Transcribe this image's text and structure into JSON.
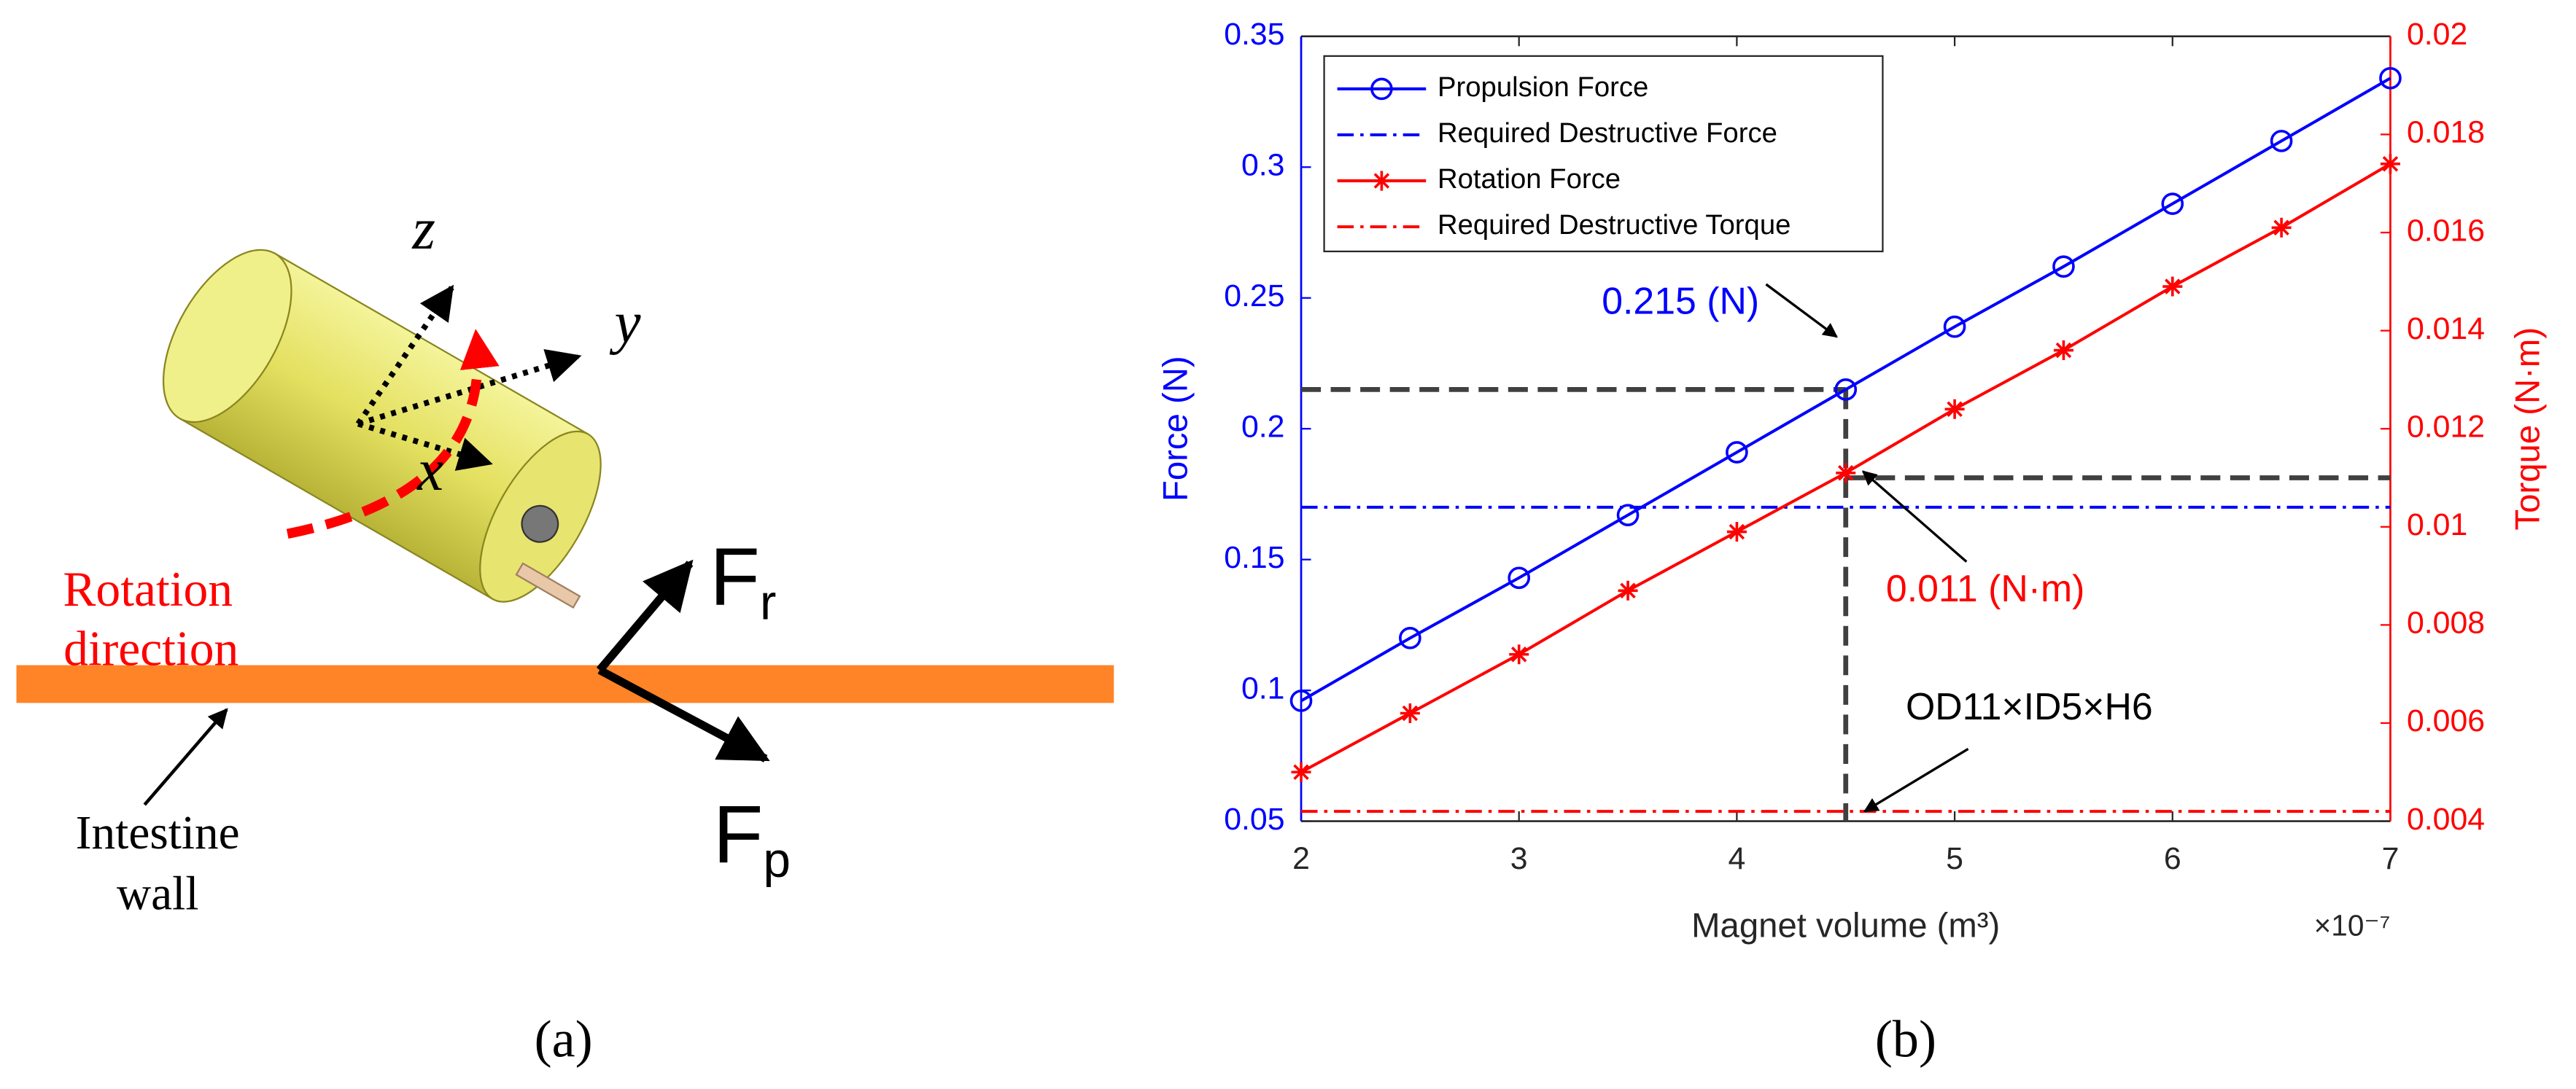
{
  "diagram": {
    "axes": [
      "z",
      "y",
      "x"
    ],
    "rotation_label": [
      "Rotation",
      "direction"
    ],
    "forces": [
      {
        "label": "F",
        "sub": "r"
      },
      {
        "label": "F",
        "sub": "p"
      }
    ],
    "wall_label": [
      "Intestine",
      "wall"
    ],
    "panel_label": "(a)"
  },
  "chart_data": {
    "type": "line",
    "panel_label": "(b)",
    "xlabel": "Magnet volume (m³)",
    "x_multiplier": "×10⁻⁷",
    "ylabel": "Force (N)",
    "y2label": "Torque (N·m)",
    "x": [
      2,
      2.5,
      3,
      3.5,
      4,
      4.5,
      5,
      5.5,
      6,
      6.5,
      7
    ],
    "xlim": [
      2,
      7
    ],
    "xticks": [
      2,
      3,
      4,
      5,
      6,
      7
    ],
    "ylim": [
      0.05,
      0.35
    ],
    "yticks": [
      0.05,
      0.1,
      0.15,
      0.2,
      0.25,
      0.3,
      0.35
    ],
    "y2lim": [
      0.004,
      0.02
    ],
    "y2ticks": [
      0.004,
      0.006,
      0.008,
      0.01,
      0.012,
      0.014,
      0.016,
      0.018,
      0.02
    ],
    "legend": "upper left",
    "series": [
      {
        "name": "Propulsion Force",
        "color": "#0000ff",
        "marker": "circle",
        "line": "solid",
        "values": [
          0.096,
          0.12,
          0.143,
          0.167,
          0.191,
          0.215,
          0.239,
          0.262,
          0.286,
          0.31,
          0.334
        ]
      },
      {
        "name": "Required Destructive Force",
        "color": "#0000ff",
        "marker": "none",
        "line": "dashdot",
        "values": [
          0.17,
          0.17,
          0.17,
          0.17,
          0.17,
          0.17,
          0.17,
          0.17,
          0.17,
          0.17,
          0.17
        ]
      },
      {
        "name": "Rotation Force",
        "color": "#ff0000",
        "marker": "star",
        "line": "solid",
        "axis": "y2",
        "values": [
          0.005,
          0.0062,
          0.0074,
          0.0087,
          0.0099,
          0.0111,
          0.0124,
          0.0136,
          0.0149,
          0.0161,
          0.0174
        ]
      },
      {
        "name": "Required Destructive Torque",
        "color": "#ff0000",
        "marker": "none",
        "line": "dashdot",
        "axis": "y2",
        "values": [
          0.0042,
          0.0042,
          0.0042,
          0.0042,
          0.0042,
          0.0042,
          0.0042,
          0.0042,
          0.0042,
          0.0042,
          0.0042
        ]
      }
    ],
    "annotations": [
      {
        "text": "0.215 (N)",
        "x": 4.5,
        "y": 0.215,
        "color": "#0000ff"
      },
      {
        "text": "0.011 (N·m)",
        "x": 4.5,
        "y": 0.011,
        "axis": "y2",
        "color": "#ff0000"
      },
      {
        "text": "OD11×ID5×H6",
        "x": 4.5,
        "y": 0.055,
        "color": "#000000"
      }
    ]
  }
}
